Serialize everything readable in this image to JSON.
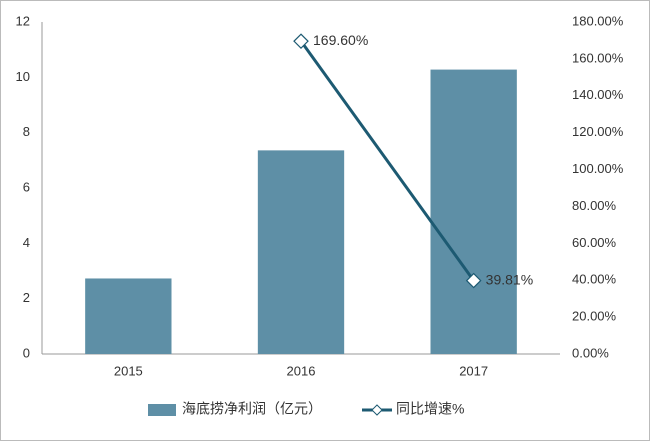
{
  "chart_data": {
    "type": "bar",
    "categories": [
      "2015",
      "2016",
      "2017"
    ],
    "series": [
      {
        "name": "海底捞净利润（亿元）",
        "type": "bar",
        "color": "#5e8fa6",
        "values": [
          2.73,
          7.36,
          10.28
        ]
      },
      {
        "name": "同比增速%",
        "type": "line",
        "axis": "y2",
        "color": "#1d5a72",
        "values": [
          null,
          169.6,
          39.81
        ],
        "value_labels": [
          null,
          "169.60%",
          "39.81%"
        ]
      }
    ],
    "ylim": [
      0,
      12
    ],
    "yticks": [
      0,
      2,
      4,
      6,
      8,
      10,
      12
    ],
    "y2lim": [
      0,
      180
    ],
    "y2ticks": [
      {
        "value": 0,
        "label": "0.00%"
      },
      {
        "value": 20,
        "label": "20.00%"
      },
      {
        "value": 40,
        "label": "40.00%"
      },
      {
        "value": 60,
        "label": "60.00%"
      },
      {
        "value": 80,
        "label": "80.00%"
      },
      {
        "value": 100,
        "label": "100.00%"
      },
      {
        "value": 120,
        "label": "120.00%"
      },
      {
        "value": 140,
        "label": "140.00%"
      },
      {
        "value": 160,
        "label": "160.00%"
      },
      {
        "value": 180,
        "label": "180.00%"
      }
    ],
    "grid": false,
    "legend": "bottom"
  }
}
